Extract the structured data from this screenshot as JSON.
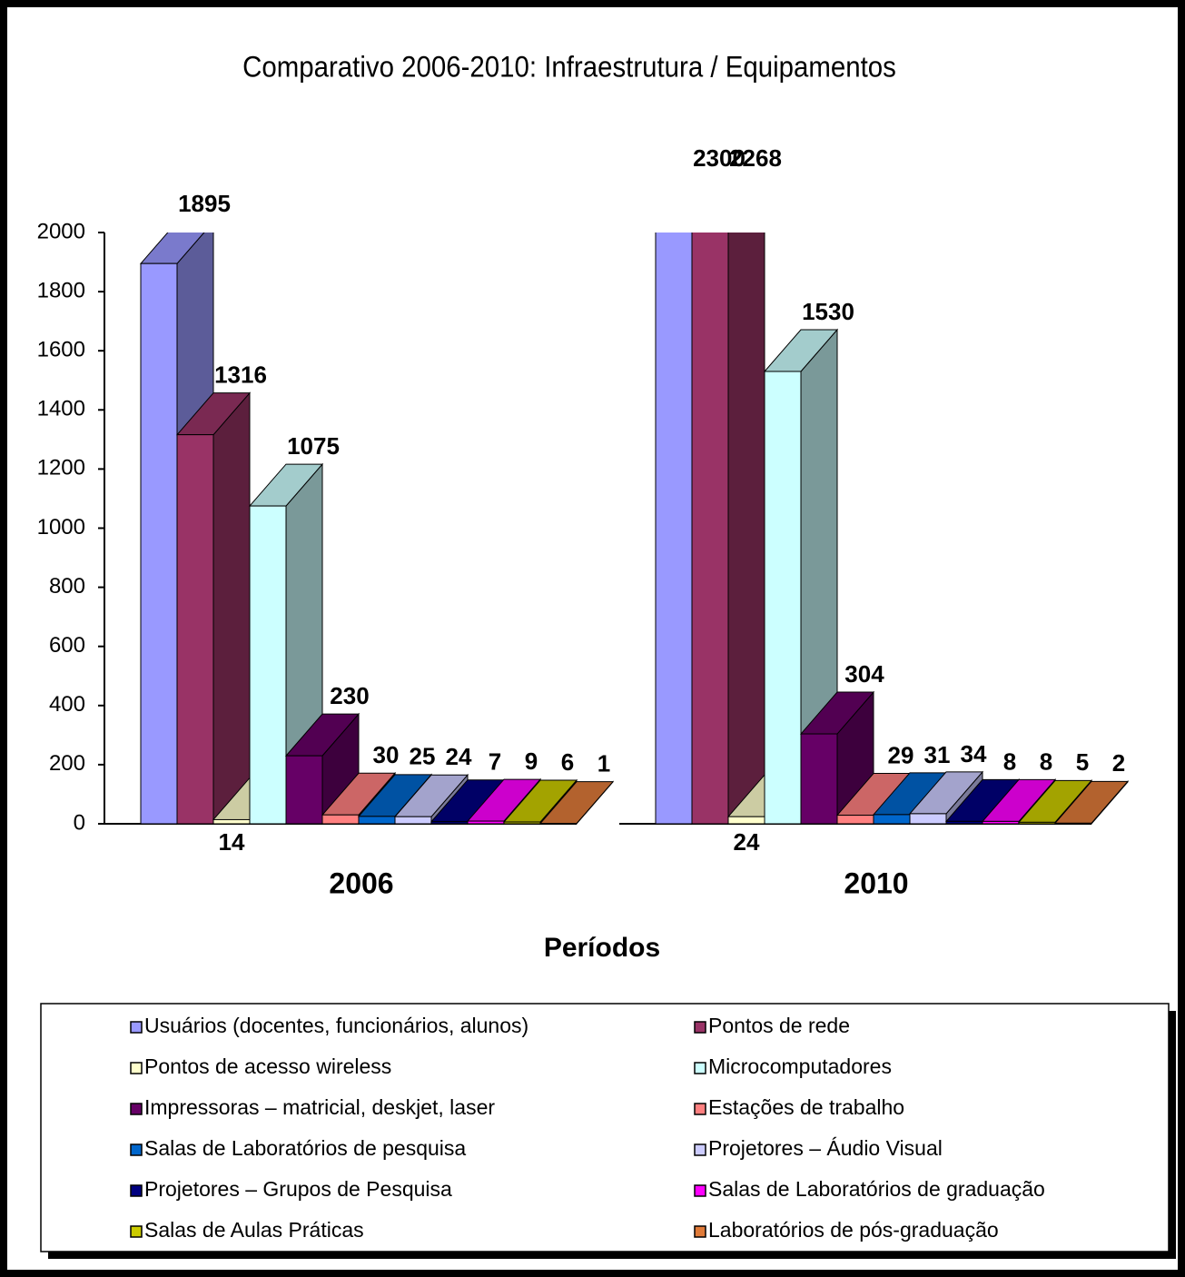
{
  "chart_data": {
    "type": "bar3d",
    "title": "Comparativo 2006-2010: Infraestrutura / Equipamentos",
    "x_label": "Períodos",
    "categories": [
      "2006",
      "2010"
    ],
    "ylim": [
      0,
      2000
    ],
    "yticks": [
      0,
      200,
      400,
      600,
      800,
      1000,
      1200,
      1400,
      1600,
      1800,
      2000
    ],
    "series": [
      {
        "name": "Usuários (docentes, funcionários, alunos)",
        "color": "#9999ff",
        "values": [
          1895,
          2300
        ]
      },
      {
        "name": "Pontos de rede",
        "color": "#993366",
        "values": [
          1316,
          2268
        ]
      },
      {
        "name": "Pontos de acesso wireless",
        "color": "#ffffcc",
        "values": [
          14,
          24
        ]
      },
      {
        "name": "Microcomputadores",
        "color": "#ccffff",
        "values": [
          1075,
          1530
        ]
      },
      {
        "name": "Impressoras – matricial, deskjet, laser",
        "color": "#660066",
        "values": [
          230,
          304
        ]
      },
      {
        "name": "Estações de trabalho",
        "color": "#ff8080",
        "values": [
          30,
          29
        ]
      },
      {
        "name": "Salas de Laboratórios de pesquisa",
        "color": "#0066cc",
        "values": [
          25,
          31
        ]
      },
      {
        "name": "Projetores – Áudio Visual",
        "color": "#ccccff",
        "values": [
          24,
          34
        ]
      },
      {
        "name": "Projetores – Grupos de Pesquisa",
        "color": "#000080",
        "values": [
          7,
          8
        ]
      },
      {
        "name": "Salas de Laboratórios de graduação",
        "color": "#ff00ff",
        "values": [
          9,
          8
        ]
      },
      {
        "name": "Salas de Aulas Práticas",
        "color": "#cccc00",
        "values": [
          6,
          5
        ]
      },
      {
        "name": "Laboratórios de pós-graduação",
        "color": "#e07b39",
        "values": [
          1,
          2
        ]
      }
    ]
  }
}
